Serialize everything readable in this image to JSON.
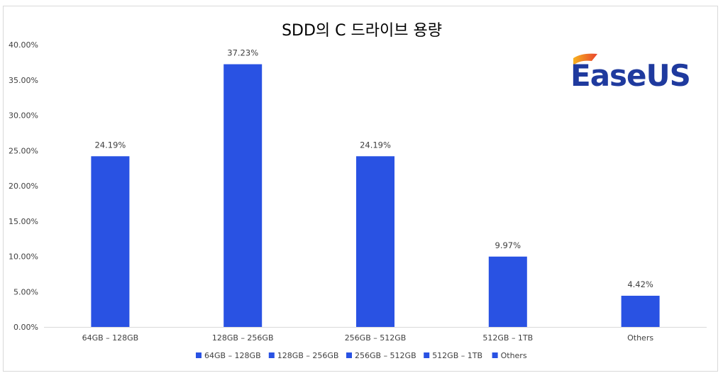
{
  "chart_data": {
    "type": "bar",
    "title": "SDD의 C 드라이브 용량",
    "categories": [
      "64GB – 128GB",
      "128GB – 256GB",
      "256GB – 512GB",
      "512GB – 1TB",
      "Others"
    ],
    "values": [
      24.19,
      37.23,
      24.19,
      9.97,
      4.42
    ],
    "data_labels": [
      "24.19%",
      "37.23%",
      "24.19%",
      "9.97%",
      "4.42%"
    ],
    "y_ticks": [
      "0.00%",
      "5.00%",
      "10.00%",
      "15.00%",
      "20.00%",
      "25.00%",
      "30.00%",
      "35.00%",
      "40.00%"
    ],
    "ylim": [
      0,
      40
    ],
    "xlabel": "",
    "ylabel": "",
    "grid": false,
    "legend_position": "bottom",
    "bar_color": "#2952e3"
  },
  "logo": {
    "text": "EaseUS",
    "gradient_colors": [
      "#f7b21e",
      "#e8432e"
    ],
    "text_color": "#1f3a9e"
  }
}
